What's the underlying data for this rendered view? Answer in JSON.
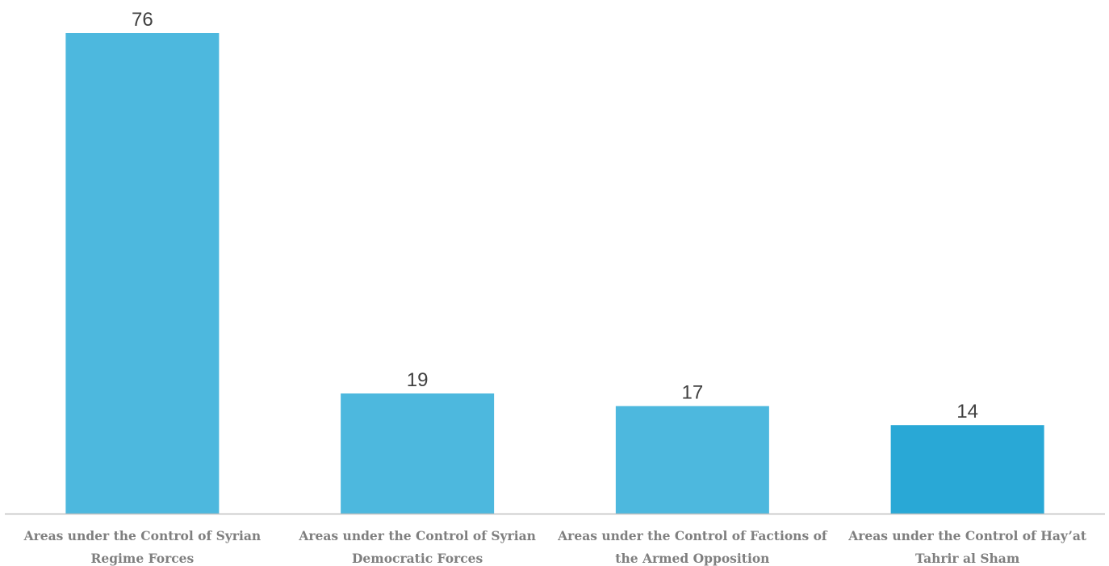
{
  "chart_data": {
    "type": "bar",
    "title": "",
    "xlabel": "",
    "ylabel": "",
    "ylim": [
      0,
      76
    ],
    "grid": false,
    "legend": "none",
    "categories": [
      [
        "Areas under the Control of Syrian",
        "Regime Forces"
      ],
      [
        "Areas under the Control of Syrian",
        "Democratic Forces"
      ],
      [
        "Areas under the Control of Factions of",
        "the Armed Opposition"
      ],
      [
        "Areas under the Control of Hay’at",
        "Tahrir al Sham"
      ]
    ],
    "values": [
      76,
      19,
      17,
      14
    ],
    "value_labels": [
      "76",
      "19",
      "17",
      "14"
    ],
    "colors": [
      "#4db8de",
      "#4db8de",
      "#4db8de",
      "#29a8d6"
    ],
    "axis_color": "#bfbfbf"
  }
}
